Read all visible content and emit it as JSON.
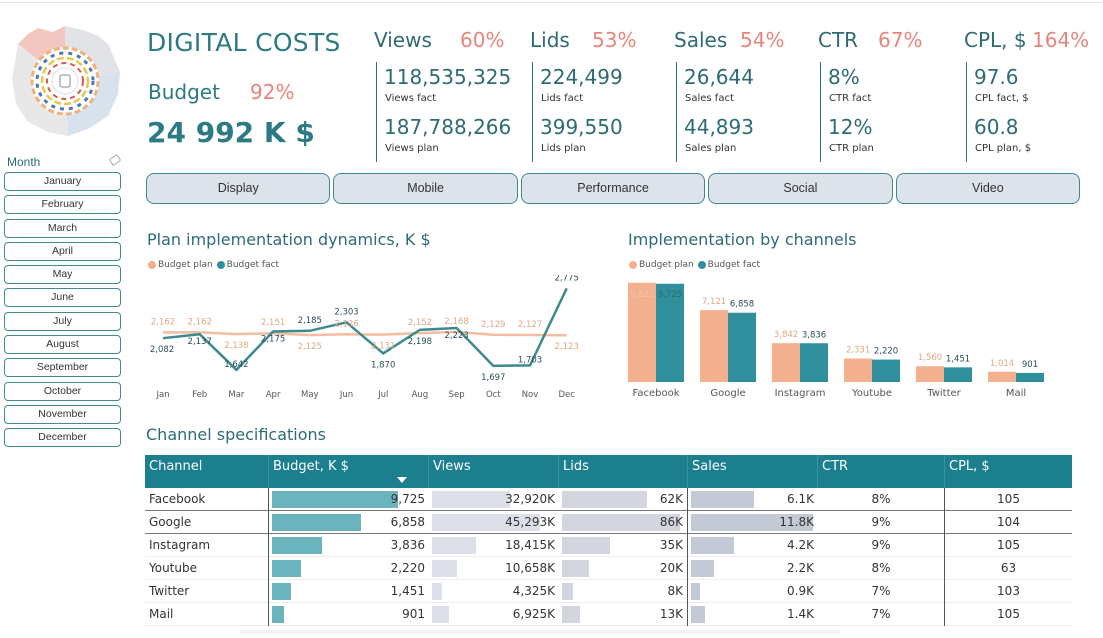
{
  "header": {
    "title": "DIGITAL COSTS",
    "budget_label": "Budget",
    "budget_pct": "92%",
    "budget_value": "24 992 K $"
  },
  "kpis": [
    {
      "name": "Views",
      "pct": "60%",
      "fact": "118,535,325",
      "fact_label": "Views fact",
      "plan": "187,788,266",
      "plan_label": "Views plan"
    },
    {
      "name": "Lids",
      "pct": "53%",
      "fact": "224,499",
      "fact_label": "Lids fact",
      "plan": "399,550",
      "plan_label": "Lids plan"
    },
    {
      "name": "Sales",
      "pct": "54%",
      "fact": "26,644",
      "fact_label": "Sales fact",
      "plan": "44,893",
      "plan_label": "Sales plan"
    },
    {
      "name": "CTR",
      "pct": "67%",
      "fact": "8%",
      "fact_label": "CTR fact",
      "plan": "12%",
      "plan_label": "CTR plan"
    },
    {
      "name": "CPL, $",
      "pct": "164%",
      "fact": "97.6",
      "fact_label": "CPL fact, $",
      "plan": "60.8",
      "plan_label": "CPL plan, $"
    }
  ],
  "month_slicer": {
    "label": "Month",
    "months": [
      "January",
      "February",
      "March",
      "April",
      "May",
      "June",
      "July",
      "August",
      "September",
      "October",
      "November",
      "December"
    ]
  },
  "category_tabs": [
    "Display",
    "Mobile",
    "Performance",
    "Social",
    "Video"
  ],
  "colors": {
    "plan": "#f2b08f",
    "fact": "#2f8f9c",
    "fact_line": "#3a8a8e",
    "accent_pct": "#e8857b",
    "header_bg": "#1b7f8e",
    "budget_bar": "#6bb3bd",
    "grey_bar": "#dde0e8",
    "grey_bar2": "#c4c9d6"
  },
  "chart_data": [
    {
      "type": "line",
      "title": "Plan implementation dynamics, K $",
      "legend": [
        "Budget plan",
        "Budget fact"
      ],
      "legend_position": "top-left",
      "categories": [
        "Jan",
        "Feb",
        "Mar",
        "Apr",
        "May",
        "Jun",
        "Jul",
        "Aug",
        "Sep",
        "Oct",
        "Nov",
        "Dec"
      ],
      "series": [
        {
          "name": "Budget plan",
          "values": [
            2162,
            2162,
            2138,
            2151,
            2125,
            2136,
            2131,
            2152,
            2168,
            2129,
            2127,
            2123
          ],
          "labels": [
            "2,162",
            "2,162",
            "2,138",
            "2,151",
            "2,125",
            "2,136",
            "2,131",
            "2,152",
            "2,168",
            "2,129",
            "2,127",
            "2,123"
          ]
        },
        {
          "name": "Budget fact",
          "values": [
            2082,
            2137,
            1642,
            2175,
            2185,
            2303,
            1870,
            2198,
            2223,
            1697,
            1703,
            2775
          ],
          "labels": [
            "2,082",
            "2,137",
            "1,642",
            "2,175",
            "2,185",
            "2,303",
            "1,870",
            "2,198",
            "2,223",
            "1,697",
            "1,703",
            "2,775"
          ]
        }
      ],
      "grid": false
    },
    {
      "type": "bar",
      "title": "Implementation by channels",
      "legend": [
        "Budget plan",
        "Budget fact"
      ],
      "legend_position": "top-left",
      "categories": [
        "Facebook",
        "Google",
        "Instagram",
        "Youtube",
        "Twitter",
        "Mail"
      ],
      "series": [
        {
          "name": "Budget plan",
          "values": [
            9822,
            7121,
            3842,
            2331,
            1560,
            1014
          ],
          "labels": [
            "9,822",
            "7,121",
            "3,842",
            "2,331",
            "1,560",
            "1,014"
          ]
        },
        {
          "name": "Budget fact",
          "values": [
            9725,
            6858,
            3836,
            2220,
            1451,
            901
          ],
          "labels": [
            "9,725",
            "6,858",
            "3,836",
            "2,220",
            "1,451",
            "901"
          ]
        }
      ],
      "grid": false
    }
  ],
  "channel_table": {
    "title": "Channel specifications",
    "columns": [
      "Channel",
      "Budget, K $",
      "Views",
      "Lids",
      "Sales",
      "CTR",
      "CPL, $"
    ],
    "sorted_column": "Budget, K $",
    "rows": [
      {
        "channel": "Facebook",
        "budget": "9,725",
        "budget_v": 9725,
        "views": "32,920K",
        "views_v": 32920,
        "lids": "62K",
        "lids_v": 62,
        "sales": "6.1K",
        "sales_v": 6.1,
        "ctr": "8%",
        "cpl": "105"
      },
      {
        "channel": "Google",
        "budget": "6,858",
        "budget_v": 6858,
        "views": "45,293K",
        "views_v": 45293,
        "lids": "86K",
        "lids_v": 86,
        "sales": "11.8K",
        "sales_v": 11.8,
        "ctr": "9%",
        "cpl": "104"
      },
      {
        "channel": "Instagram",
        "budget": "3,836",
        "budget_v": 3836,
        "views": "18,415K",
        "views_v": 18415,
        "lids": "35K",
        "lids_v": 35,
        "sales": "4.2K",
        "sales_v": 4.2,
        "ctr": "9%",
        "cpl": "105"
      },
      {
        "channel": "Youtube",
        "budget": "2,220",
        "budget_v": 2220,
        "views": "10,658K",
        "views_v": 10658,
        "lids": "20K",
        "lids_v": 20,
        "sales": "2.2K",
        "sales_v": 2.2,
        "ctr": "8%",
        "cpl": "63"
      },
      {
        "channel": "Twitter",
        "budget": "1,451",
        "budget_v": 1451,
        "views": "4,325K",
        "views_v": 4325,
        "lids": "8K",
        "lids_v": 8,
        "sales": "0.9K",
        "sales_v": 0.9,
        "ctr": "7%",
        "cpl": "103"
      },
      {
        "channel": "Mail",
        "budget": "901",
        "budget_v": 901,
        "views": "6,925K",
        "views_v": 6925,
        "lids": "13K",
        "lids_v": 13,
        "sales": "1.4K",
        "sales_v": 1.4,
        "ctr": "7%",
        "cpl": "105"
      }
    ]
  }
}
